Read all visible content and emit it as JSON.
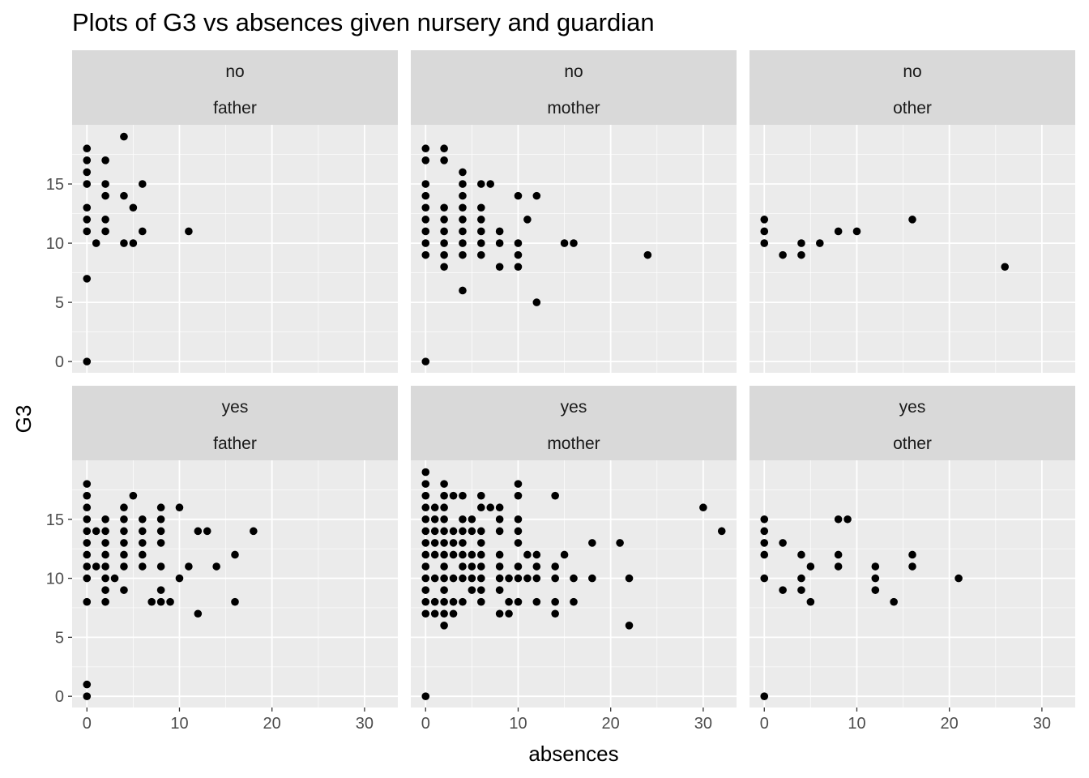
{
  "chart_data": {
    "type": "scatter",
    "title": "Plots of G3 vs absences given nursery and guardian",
    "xlabel": "absences",
    "ylabel": "G3",
    "xlim": [
      -1.6,
      33.6
    ],
    "ylim": [
      -0.95,
      20
    ],
    "x_ticks": [
      0,
      10,
      20,
      30
    ],
    "y_ticks": [
      0,
      5,
      10,
      15
    ],
    "grid": true,
    "point_color": "#000000",
    "panel_background": "#EBEBEB",
    "strip_background": "#D9D9D9",
    "facets": [
      {
        "row": "no",
        "col": "father",
        "points": [
          [
            0,
            0
          ],
          [
            0,
            7
          ],
          [
            0,
            11
          ],
          [
            0,
            12
          ],
          [
            0,
            13
          ],
          [
            0,
            15
          ],
          [
            0,
            16
          ],
          [
            0,
            17
          ],
          [
            0,
            18
          ],
          [
            1,
            10
          ],
          [
            2,
            11
          ],
          [
            2,
            12
          ],
          [
            2,
            14
          ],
          [
            2,
            15
          ],
          [
            2,
            17
          ],
          [
            4,
            10
          ],
          [
            4,
            14
          ],
          [
            4,
            19
          ],
          [
            5,
            10
          ],
          [
            5,
            13
          ],
          [
            6,
            11
          ],
          [
            6,
            15
          ],
          [
            11,
            11
          ]
        ]
      },
      {
        "row": "no",
        "col": "mother",
        "points": [
          [
            0,
            0
          ],
          [
            0,
            9
          ],
          [
            0,
            10
          ],
          [
            0,
            11
          ],
          [
            0,
            12
          ],
          [
            0,
            13
          ],
          [
            0,
            14
          ],
          [
            0,
            15
          ],
          [
            0,
            17
          ],
          [
            0,
            18
          ],
          [
            2,
            8
          ],
          [
            2,
            9
          ],
          [
            2,
            10
          ],
          [
            2,
            11
          ],
          [
            2,
            12
          ],
          [
            2,
            13
          ],
          [
            2,
            17
          ],
          [
            2,
            18
          ],
          [
            4,
            6
          ],
          [
            4,
            9
          ],
          [
            4,
            10
          ],
          [
            4,
            11
          ],
          [
            4,
            12
          ],
          [
            4,
            13
          ],
          [
            4,
            14
          ],
          [
            4,
            15
          ],
          [
            4,
            16
          ],
          [
            6,
            9
          ],
          [
            6,
            10
          ],
          [
            6,
            11
          ],
          [
            6,
            12
          ],
          [
            6,
            13
          ],
          [
            6,
            15
          ],
          [
            7,
            15
          ],
          [
            8,
            8
          ],
          [
            8,
            10
          ],
          [
            8,
            11
          ],
          [
            10,
            8
          ],
          [
            10,
            9
          ],
          [
            10,
            10
          ],
          [
            10,
            14
          ],
          [
            11,
            12
          ],
          [
            12,
            5
          ],
          [
            12,
            14
          ],
          [
            15,
            10
          ],
          [
            16,
            10
          ],
          [
            24,
            9
          ]
        ]
      },
      {
        "row": "no",
        "col": "other",
        "points": [
          [
            0,
            10
          ],
          [
            0,
            11
          ],
          [
            0,
            12
          ],
          [
            2,
            9
          ],
          [
            4,
            9
          ],
          [
            4,
            10
          ],
          [
            6,
            10
          ],
          [
            8,
            11
          ],
          [
            10,
            11
          ],
          [
            16,
            12
          ],
          [
            26,
            8
          ]
        ]
      },
      {
        "row": "yes",
        "col": "father",
        "points": [
          [
            0,
            0
          ],
          [
            0,
            1
          ],
          [
            0,
            8
          ],
          [
            0,
            10
          ],
          [
            0,
            11
          ],
          [
            0,
            12
          ],
          [
            0,
            13
          ],
          [
            0,
            14
          ],
          [
            0,
            15
          ],
          [
            0,
            16
          ],
          [
            0,
            17
          ],
          [
            0,
            18
          ],
          [
            1,
            11
          ],
          [
            1,
            14
          ],
          [
            2,
            8
          ],
          [
            2,
            9
          ],
          [
            2,
            10
          ],
          [
            2,
            11
          ],
          [
            2,
            12
          ],
          [
            2,
            13
          ],
          [
            2,
            14
          ],
          [
            2,
            15
          ],
          [
            3,
            10
          ],
          [
            4,
            9
          ],
          [
            4,
            11
          ],
          [
            4,
            12
          ],
          [
            4,
            13
          ],
          [
            4,
            14
          ],
          [
            4,
            15
          ],
          [
            4,
            16
          ],
          [
            5,
            17
          ],
          [
            6,
            11
          ],
          [
            6,
            12
          ],
          [
            6,
            13
          ],
          [
            6,
            14
          ],
          [
            6,
            15
          ],
          [
            7,
            8
          ],
          [
            8,
            8
          ],
          [
            8,
            9
          ],
          [
            8,
            11
          ],
          [
            8,
            13
          ],
          [
            8,
            14
          ],
          [
            8,
            15
          ],
          [
            8,
            16
          ],
          [
            9,
            8
          ],
          [
            10,
            10
          ],
          [
            10,
            16
          ],
          [
            11,
            11
          ],
          [
            12,
            7
          ],
          [
            12,
            14
          ],
          [
            13,
            14
          ],
          [
            14,
            11
          ],
          [
            16,
            8
          ],
          [
            16,
            12
          ],
          [
            18,
            14
          ]
        ]
      },
      {
        "row": "yes",
        "col": "mother",
        "points": [
          [
            0,
            0
          ],
          [
            0,
            7
          ],
          [
            0,
            8
          ],
          [
            0,
            9
          ],
          [
            0,
            10
          ],
          [
            0,
            11
          ],
          [
            0,
            12
          ],
          [
            0,
            13
          ],
          [
            0,
            14
          ],
          [
            0,
            15
          ],
          [
            0,
            16
          ],
          [
            0,
            17
          ],
          [
            0,
            18
          ],
          [
            0,
            19
          ],
          [
            1,
            7
          ],
          [
            1,
            8
          ],
          [
            1,
            10
          ],
          [
            1,
            12
          ],
          [
            1,
            13
          ],
          [
            1,
            14
          ],
          [
            1,
            15
          ],
          [
            1,
            16
          ],
          [
            2,
            6
          ],
          [
            2,
            7
          ],
          [
            2,
            8
          ],
          [
            2,
            9
          ],
          [
            2,
            10
          ],
          [
            2,
            11
          ],
          [
            2,
            12
          ],
          [
            2,
            13
          ],
          [
            2,
            14
          ],
          [
            2,
            15
          ],
          [
            2,
            16
          ],
          [
            2,
            17
          ],
          [
            2,
            18
          ],
          [
            3,
            7
          ],
          [
            3,
            8
          ],
          [
            3,
            10
          ],
          [
            3,
            12
          ],
          [
            3,
            13
          ],
          [
            3,
            14
          ],
          [
            3,
            17
          ],
          [
            4,
            8
          ],
          [
            4,
            10
          ],
          [
            4,
            11
          ],
          [
            4,
            12
          ],
          [
            4,
            13
          ],
          [
            4,
            14
          ],
          [
            4,
            15
          ],
          [
            4,
            17
          ],
          [
            5,
            9
          ],
          [
            5,
            10
          ],
          [
            5,
            11
          ],
          [
            5,
            12
          ],
          [
            5,
            14
          ],
          [
            5,
            15
          ],
          [
            6,
            8
          ],
          [
            6,
            9
          ],
          [
            6,
            10
          ],
          [
            6,
            11
          ],
          [
            6,
            12
          ],
          [
            6,
            13
          ],
          [
            6,
            14
          ],
          [
            6,
            16
          ],
          [
            6,
            17
          ],
          [
            7,
            16
          ],
          [
            8,
            7
          ],
          [
            8,
            9
          ],
          [
            8,
            10
          ],
          [
            8,
            11
          ],
          [
            8,
            12
          ],
          [
            8,
            14
          ],
          [
            8,
            15
          ],
          [
            8,
            16
          ],
          [
            9,
            7
          ],
          [
            9,
            8
          ],
          [
            9,
            10
          ],
          [
            10,
            8
          ],
          [
            10,
            10
          ],
          [
            10,
            11
          ],
          [
            10,
            13
          ],
          [
            10,
            14
          ],
          [
            10,
            15
          ],
          [
            10,
            17
          ],
          [
            10,
            18
          ],
          [
            11,
            10
          ],
          [
            11,
            12
          ],
          [
            12,
            8
          ],
          [
            12,
            10
          ],
          [
            12,
            11
          ],
          [
            12,
            12
          ],
          [
            14,
            7
          ],
          [
            14,
            8
          ],
          [
            14,
            10
          ],
          [
            14,
            11
          ],
          [
            14,
            17
          ],
          [
            15,
            12
          ],
          [
            16,
            8
          ],
          [
            16,
            10
          ],
          [
            18,
            10
          ],
          [
            18,
            13
          ],
          [
            21,
            13
          ],
          [
            22,
            6
          ],
          [
            22,
            10
          ],
          [
            30,
            16
          ],
          [
            32,
            14
          ]
        ]
      },
      {
        "row": "yes",
        "col": "other",
        "points": [
          [
            0,
            0
          ],
          [
            0,
            10
          ],
          [
            0,
            12
          ],
          [
            0,
            13
          ],
          [
            0,
            14
          ],
          [
            0,
            15
          ],
          [
            2,
            9
          ],
          [
            2,
            13
          ],
          [
            4,
            9
          ],
          [
            4,
            10
          ],
          [
            4,
            12
          ],
          [
            5,
            8
          ],
          [
            5,
            11
          ],
          [
            8,
            11
          ],
          [
            8,
            12
          ],
          [
            8,
            15
          ],
          [
            9,
            15
          ],
          [
            12,
            9
          ],
          [
            12,
            10
          ],
          [
            12,
            11
          ],
          [
            14,
            8
          ],
          [
            16,
            11
          ],
          [
            16,
            12
          ],
          [
            21,
            10
          ]
        ]
      }
    ]
  }
}
